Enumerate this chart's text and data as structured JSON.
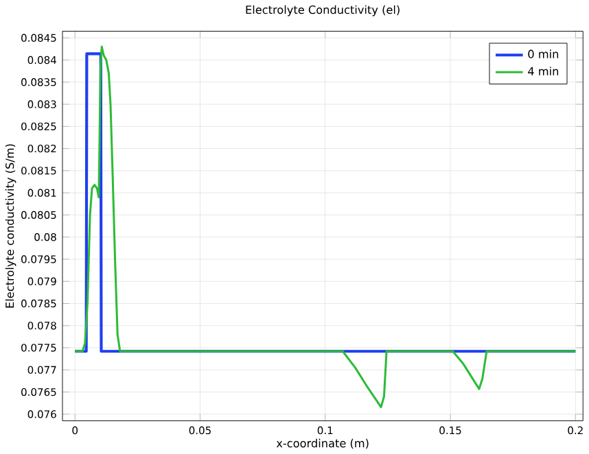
{
  "chart_data": {
    "type": "line",
    "title": "Electrolyte Conductivity (el)",
    "xlabel": "x-coordinate (m)",
    "ylabel": "Electrolyte conductivity (S/m)",
    "xlim": [
      -0.005,
      0.203
    ],
    "ylim": [
      0.07585,
      0.08465
    ],
    "xticks": [
      0,
      0.05,
      0.1,
      0.15,
      0.2
    ],
    "yticks": [
      0.076,
      0.0765,
      0.077,
      0.0775,
      0.078,
      0.0785,
      0.079,
      0.0795,
      0.08,
      0.0805,
      0.081,
      0.0815,
      0.082,
      0.0825,
      0.083,
      0.0835,
      0.084,
      0.0845
    ],
    "grid": true,
    "legend": "top right",
    "marker": "none",
    "line_style": "solid",
    "series": [
      {
        "name": "0 min",
        "color": "#1f3ff0",
        "x": [
          0,
          0.0045,
          0.0047,
          0.0103,
          0.0105,
          0.2
        ],
        "values": [
          0.07742,
          0.07742,
          0.08414,
          0.08414,
          0.07742,
          0.07742
        ]
      },
      {
        "name": "4 min",
        "color": "#2dbb37",
        "x": [
          0,
          0.003,
          0.004,
          0.005,
          0.006,
          0.0068,
          0.0078,
          0.0088,
          0.0095,
          0.0102,
          0.0107,
          0.0115,
          0.0125,
          0.0135,
          0.0142,
          0.015,
          0.016,
          0.017,
          0.018,
          0.107,
          0.112,
          0.117,
          0.1223,
          0.1235,
          0.1245,
          0.151,
          0.155,
          0.1615,
          0.1628,
          0.1645,
          0.2
        ],
        "values": [
          0.07742,
          0.07742,
          0.0776,
          0.0785,
          0.0805,
          0.0811,
          0.08118,
          0.0811,
          0.0809,
          0.0838,
          0.0843,
          0.0841,
          0.084,
          0.0837,
          0.083,
          0.0815,
          0.0795,
          0.0778,
          0.07742,
          0.07742,
          0.07705,
          0.0766,
          0.07616,
          0.0764,
          0.07742,
          0.07742,
          0.07715,
          0.07657,
          0.0768,
          0.07742,
          0.07742
        ]
      }
    ]
  }
}
